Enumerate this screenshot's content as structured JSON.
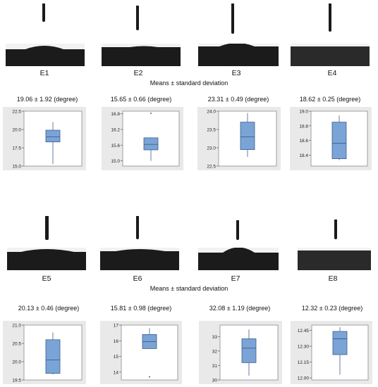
{
  "top_group": {
    "caption": "Means ± standard deviation",
    "samples": [
      {
        "label": "E1",
        "value": "19.06 ± 1.92 (degree)"
      },
      {
        "label": "E2",
        "value": "15.65 ± 0.66 (degree)"
      },
      {
        "label": "E3",
        "value": "23.31 ± 0.49 (degree)"
      },
      {
        "label": "E4",
        "value": "18.62 ± 0.25 (degree)"
      }
    ]
  },
  "bottom_group": {
    "caption": "Means ± standard deviation",
    "samples": [
      {
        "label": "E5",
        "value": "20.13 ± 0.46 (degree)"
      },
      {
        "label": "E6",
        "value": "15.81 ± 0.98 (degree)"
      },
      {
        "label": "E7",
        "value": "32.08 ± 1.19 (degree)"
      },
      {
        "label": "E8",
        "value": "12.32 ± 0.23 (degree)"
      }
    ]
  },
  "colors": {
    "box_fill": "#7aa3d6",
    "box_stroke": "#3d5f8c",
    "panel_bg": "#e9e9e9",
    "droplet_bg": "#2a2a2a"
  },
  "chart_data": [
    {
      "type": "box",
      "name": "E1",
      "ylim": [
        15.0,
        22.5
      ],
      "ticks": [
        "15.0",
        "17.5",
        "20.0",
        "22.5"
      ],
      "ticks_num": [
        15.0,
        17.5,
        20.0,
        22.5
      ],
      "min": 15.3,
      "q1": 18.3,
      "median": 19.0,
      "q3": 19.9,
      "max": 21.0
    },
    {
      "type": "box",
      "name": "E2",
      "ylim": [
        14.8,
        16.9
      ],
      "ticks": [
        "15.0",
        "15.6",
        "16.2",
        "16.8"
      ],
      "ticks_num": [
        15.0,
        15.6,
        16.2,
        16.8
      ],
      "min": 15.0,
      "q1": 15.42,
      "median": 15.63,
      "q3": 15.88,
      "max": 15.9,
      "outliers": [
        16.82
      ]
    },
    {
      "type": "box",
      "name": "E3",
      "ylim": [
        22.5,
        24.0
      ],
      "ticks": [
        "22.5",
        "23.0",
        "23.5",
        "24.0"
      ],
      "ticks_num": [
        22.5,
        23.0,
        23.5,
        24.0
      ],
      "min": 22.75,
      "q1": 22.95,
      "median": 23.3,
      "q3": 23.7,
      "max": 23.95
    },
    {
      "type": "box",
      "name": "E4",
      "ylim": [
        18.25,
        19.0
      ],
      "ticks": [
        "18.4",
        "18.6",
        "18.8",
        "19.0"
      ],
      "ticks_num": [
        18.4,
        18.6,
        18.8,
        19.0
      ],
      "min": 18.33,
      "q1": 18.35,
      "median": 18.56,
      "q3": 18.85,
      "max": 18.94
    },
    {
      "type": "box",
      "name": "E5",
      "ylim": [
        19.5,
        21.0
      ],
      "ticks": [
        "19.5",
        "20.0",
        "20.5",
        "21.0"
      ],
      "ticks_num": [
        19.5,
        20.0,
        20.5,
        21.0
      ],
      "min": 19.65,
      "q1": 19.68,
      "median": 20.05,
      "q3": 20.6,
      "max": 20.8
    },
    {
      "type": "box",
      "name": "E6",
      "ylim": [
        13.5,
        17.0
      ],
      "ticks": [
        "14",
        "15",
        "16",
        "17"
      ],
      "ticks_num": [
        14,
        15,
        16,
        17
      ],
      "min": 15.5,
      "q1": 15.5,
      "median": 15.95,
      "q3": 16.4,
      "max": 16.8,
      "outliers": [
        13.7
      ]
    },
    {
      "type": "box",
      "name": "E7",
      "ylim": [
        30.0,
        33.8
      ],
      "ticks": [
        "30",
        "31",
        "32",
        "33"
      ],
      "ticks_num": [
        30,
        31,
        32,
        33
      ],
      "min": 30.3,
      "q1": 31.2,
      "median": 32.2,
      "q3": 32.85,
      "max": 33.5
    },
    {
      "type": "box",
      "name": "E8",
      "ylim": [
        11.98,
        12.5
      ],
      "ticks": [
        "12.00",
        "12.15",
        "12.30",
        "12.45"
      ],
      "ticks_num": [
        12.0,
        12.15,
        12.3,
        12.45
      ],
      "min": 12.03,
      "q1": 12.22,
      "median": 12.37,
      "q3": 12.44,
      "max": 12.48
    }
  ]
}
